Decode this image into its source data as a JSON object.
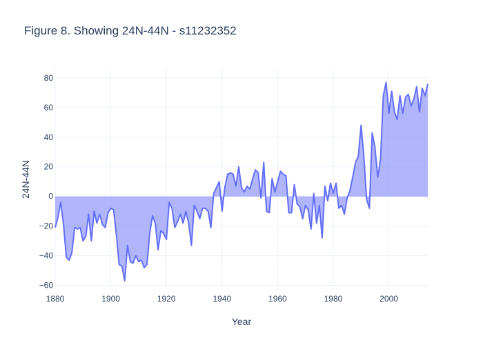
{
  "chart_data": {
    "type": "area",
    "title": "Figure 8. Showing 24N-44N - s11232352",
    "xlabel": "Year",
    "ylabel": "24N-44N",
    "xlim": [
      1880,
      2014
    ],
    "ylim": [
      -63,
      86
    ],
    "x_ticks": [
      1880,
      1900,
      1920,
      1940,
      1960,
      1980,
      2000
    ],
    "y_ticks": [
      -60,
      -40,
      -20,
      0,
      20,
      40,
      60,
      80
    ],
    "grid": true,
    "legend": "none",
    "colors": {
      "line": "#636efa",
      "fill": "rgba(99,110,250,0.5)",
      "grid": "#ebf0f8",
      "zeroline": "#ebf0f8",
      "text": "#2a3f5f"
    },
    "series": [
      {
        "x": [
          1880,
          1881,
          1882,
          1883,
          1884,
          1885,
          1886,
          1887,
          1888,
          1889,
          1890,
          1891,
          1892,
          1893,
          1894,
          1895,
          1896,
          1897,
          1898,
          1899,
          1900,
          1901,
          1902,
          1903,
          1904,
          1905,
          1906,
          1907,
          1908,
          1909,
          1910,
          1911,
          1912,
          1913,
          1914,
          1915,
          1916,
          1917,
          1918,
          1919,
          1920,
          1921,
          1922,
          1923,
          1924,
          1925,
          1926,
          1927,
          1928,
          1929,
          1930,
          1931,
          1932,
          1933,
          1934,
          1935,
          1936,
          1937,
          1938,
          1939,
          1940,
          1941,
          1942,
          1943,
          1944,
          1945,
          1946,
          1947,
          1948,
          1949,
          1950,
          1951,
          1952,
          1953,
          1954,
          1955,
          1956,
          1957,
          1958,
          1959,
          1960,
          1961,
          1962,
          1963,
          1964,
          1965,
          1966,
          1967,
          1968,
          1969,
          1970,
          1971,
          1972,
          1973,
          1974,
          1975,
          1976,
          1977,
          1978,
          1979,
          1980,
          1981,
          1982,
          1983,
          1984,
          1985,
          1986,
          1987,
          1988,
          1989,
          1990,
          1991,
          1992,
          1993,
          1994,
          1995,
          1996,
          1997,
          1998,
          1999,
          2000,
          2001,
          2002,
          2003,
          2004,
          2005,
          2006,
          2007,
          2008,
          2009,
          2010,
          2011,
          2012,
          2013,
          2014
        ],
        "values": [
          -21,
          -14,
          -4,
          -19,
          -41,
          -43,
          -38,
          -21,
          -22,
          -21,
          -30,
          -27,
          -12,
          -30,
          -10,
          -18,
          -12,
          -19,
          -21,
          -11,
          -8,
          -9,
          -26,
          -46,
          -47,
          -57,
          -33,
          -44,
          -45,
          -40,
          -44,
          -43,
          -48,
          -46,
          -25,
          -13,
          -18,
          -36,
          -23,
          -25,
          -29,
          -4,
          -8,
          -21,
          -17,
          -12,
          -18,
          -10,
          -18,
          -33,
          -6,
          -10,
          -15,
          -8,
          -8,
          -10,
          -21,
          2,
          6,
          10,
          -10,
          6,
          15,
          16,
          15,
          7,
          20,
          6,
          3,
          7,
          5,
          12,
          18,
          16,
          -1,
          23,
          -10,
          -11,
          12,
          3,
          10,
          17,
          15,
          14,
          -11,
          -11,
          8,
          -5,
          -7,
          -15,
          -6,
          -9,
          -22,
          2,
          -18,
          -6,
          -28,
          7,
          -3,
          9,
          2,
          9,
          -8,
          -6,
          -12,
          -1,
          4,
          13,
          23,
          27,
          48,
          27,
          -2,
          -8,
          43,
          33,
          13,
          25,
          68,
          77,
          56,
          71,
          57,
          52,
          68,
          56,
          67,
          69,
          61,
          66,
          74,
          57,
          73,
          68,
          76
        ]
      }
    ]
  }
}
